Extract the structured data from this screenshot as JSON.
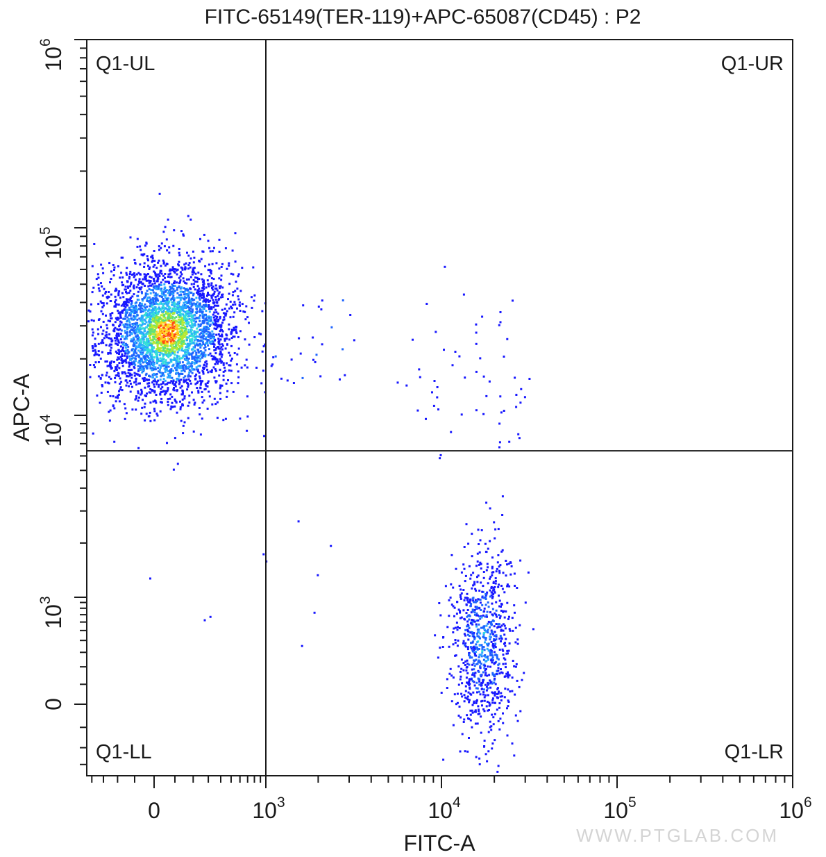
{
  "chart_data": {
    "type": "scatter",
    "title": "FITC-65149(TER-119)+APC-65087(CD45) : P2",
    "xlabel": "FITC-A",
    "ylabel": "APC-A",
    "x_scale": "biexponential",
    "y_scale": "biexponential",
    "xlim": [
      -450,
      1000000
    ],
    "ylim": [
      -380,
      1000000
    ],
    "x_ticks": [
      {
        "label": "0",
        "base": "",
        "exp": "",
        "value": 0
      },
      {
        "label": "",
        "base": "10",
        "exp": "3",
        "value": 1000
      },
      {
        "label": "",
        "base": "10",
        "exp": "4",
        "value": 10000
      },
      {
        "label": "",
        "base": "10",
        "exp": "5",
        "value": 100000
      },
      {
        "label": "",
        "base": "10",
        "exp": "6",
        "value": 1000000
      }
    ],
    "y_ticks": [
      {
        "label": "0",
        "base": "",
        "exp": "",
        "value": 0
      },
      {
        "label": "",
        "base": "10",
        "exp": "3",
        "value": 1000
      },
      {
        "label": "",
        "base": "10",
        "exp": "4",
        "value": 10000
      },
      {
        "label": "",
        "base": "10",
        "exp": "5",
        "value": 100000
      },
      {
        "label": "",
        "base": "10",
        "exp": "6",
        "value": 1000000
      }
    ],
    "quadrant_gate": {
      "x": 1000,
      "y": 6400
    },
    "quadrants": [
      {
        "name": "Q1-UL",
        "position": "top-left"
      },
      {
        "name": "Q1-UR",
        "position": "top-right"
      },
      {
        "name": "Q1-LL",
        "position": "bottom-left"
      },
      {
        "name": "Q1-LR",
        "position": "bottom-right"
      }
    ],
    "populations": [
      {
        "name": "",
        "quadrant": "Q1-UL",
        "center": [
          60,
          28000
        ],
        "approx_events": 3400,
        "color_scale": "density (blue-cyan-green-yellow-red)"
      },
      {
        "name": "",
        "quadrant": "Q1-LR",
        "center": [
          17000,
          400
        ],
        "approx_events": 850,
        "color_scale": "density (blue-cyan)"
      },
      {
        "name": "",
        "quadrant": "Q1-UR",
        "center": [
          15000,
          15000
        ],
        "approx_events": 60,
        "color_scale": "sparse"
      }
    ],
    "grid": false,
    "density_colors": [
      "#1818ff",
      "#1e64ff",
      "#2aa8ff",
      "#35e0d8",
      "#5ce07a",
      "#b8e830",
      "#ffd21e",
      "#ff4a14"
    ]
  },
  "watermark": "WWW.PTGLAB.COM"
}
